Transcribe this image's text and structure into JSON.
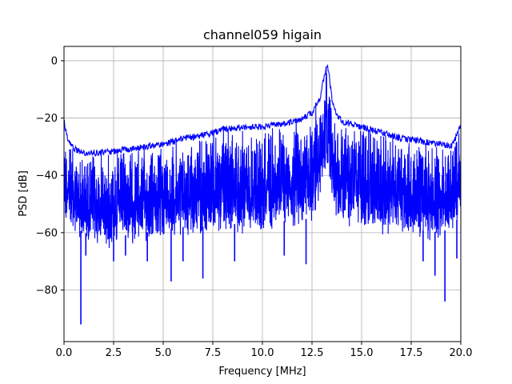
{
  "chart_data": {
    "type": "line",
    "title": "channel059 higain",
    "xlabel": "Frequency [MHz]",
    "ylabel": "PSD [dB]",
    "xlim": [
      0,
      20
    ],
    "ylim": [
      -98,
      5
    ],
    "grid": true,
    "xticks": [
      0.0,
      2.5,
      5.0,
      7.5,
      10.0,
      12.5,
      15.0,
      17.5,
      20.0
    ],
    "xtick_labels": [
      "0.0",
      "2.5",
      "5.0",
      "7.5",
      "10.0",
      "12.5",
      "15.0",
      "17.5",
      "20.0"
    ],
    "yticks": [
      0,
      -20,
      -40,
      -60,
      -80
    ],
    "ytick_labels": [
      "0",
      "−20",
      "−40",
      "−60",
      "−80"
    ],
    "series": [
      {
        "color": "#0000ff",
        "upper_envelope": {
          "x": [
            0.0,
            0.1,
            0.3,
            0.6,
            1.0,
            2.0,
            3.0,
            4.0,
            5.0,
            6.0,
            7.0,
            8.0,
            9.0,
            10.0,
            11.0,
            12.0,
            12.5,
            12.9,
            13.1,
            13.25,
            13.35,
            13.5,
            13.7,
            14.0,
            14.5,
            15.0,
            16.0,
            17.0,
            18.0,
            19.0,
            19.5,
            19.8,
            20.0
          ],
          "y": [
            -20,
            -24,
            -28,
            -30,
            -31,
            -31,
            -30,
            -29,
            -28,
            -26,
            -25,
            -23,
            -22,
            -22,
            -21,
            -19,
            -17,
            -12,
            -5,
            0,
            -3,
            -12,
            -17,
            -20,
            -21,
            -22,
            -24,
            -26,
            -27,
            -28,
            -29,
            -25,
            -21
          ]
        },
        "lower_envelope": {
          "x": [
            0.0,
            0.5,
            1.0,
            2.0,
            3.0,
            4.0,
            5.0,
            6.0,
            7.0,
            8.0,
            9.0,
            10.0,
            11.0,
            12.0,
            12.5,
            12.8,
            13.0,
            13.2,
            13.4,
            13.6,
            14.0,
            15.0,
            16.0,
            17.0,
            18.0,
            19.0,
            19.5,
            20.0
          ],
          "y": [
            -56,
            -62,
            -64,
            -66,
            -65,
            -64,
            -63,
            -62,
            -62,
            -61,
            -61,
            -60,
            -60,
            -60,
            -58,
            -52,
            -45,
            -38,
            -44,
            -55,
            -58,
            -60,
            -61,
            -62,
            -63,
            -64,
            -62,
            -58
          ]
        },
        "spikes": [
          {
            "x": 0.85,
            "y": -92
          },
          {
            "x": 1.1,
            "y": -68
          },
          {
            "x": 2.5,
            "y": -70
          },
          {
            "x": 3.1,
            "y": -68
          },
          {
            "x": 4.2,
            "y": -70
          },
          {
            "x": 5.4,
            "y": -77
          },
          {
            "x": 6.0,
            "y": -70
          },
          {
            "x": 7.0,
            "y": -76
          },
          {
            "x": 8.6,
            "y": -70
          },
          {
            "x": 11.1,
            "y": -68
          },
          {
            "x": 12.2,
            "y": -71
          },
          {
            "x": 18.1,
            "y": -70
          },
          {
            "x": 18.7,
            "y": -75
          },
          {
            "x": 19.2,
            "y": -84
          },
          {
            "x": 19.8,
            "y": -69
          }
        ]
      }
    ]
  }
}
